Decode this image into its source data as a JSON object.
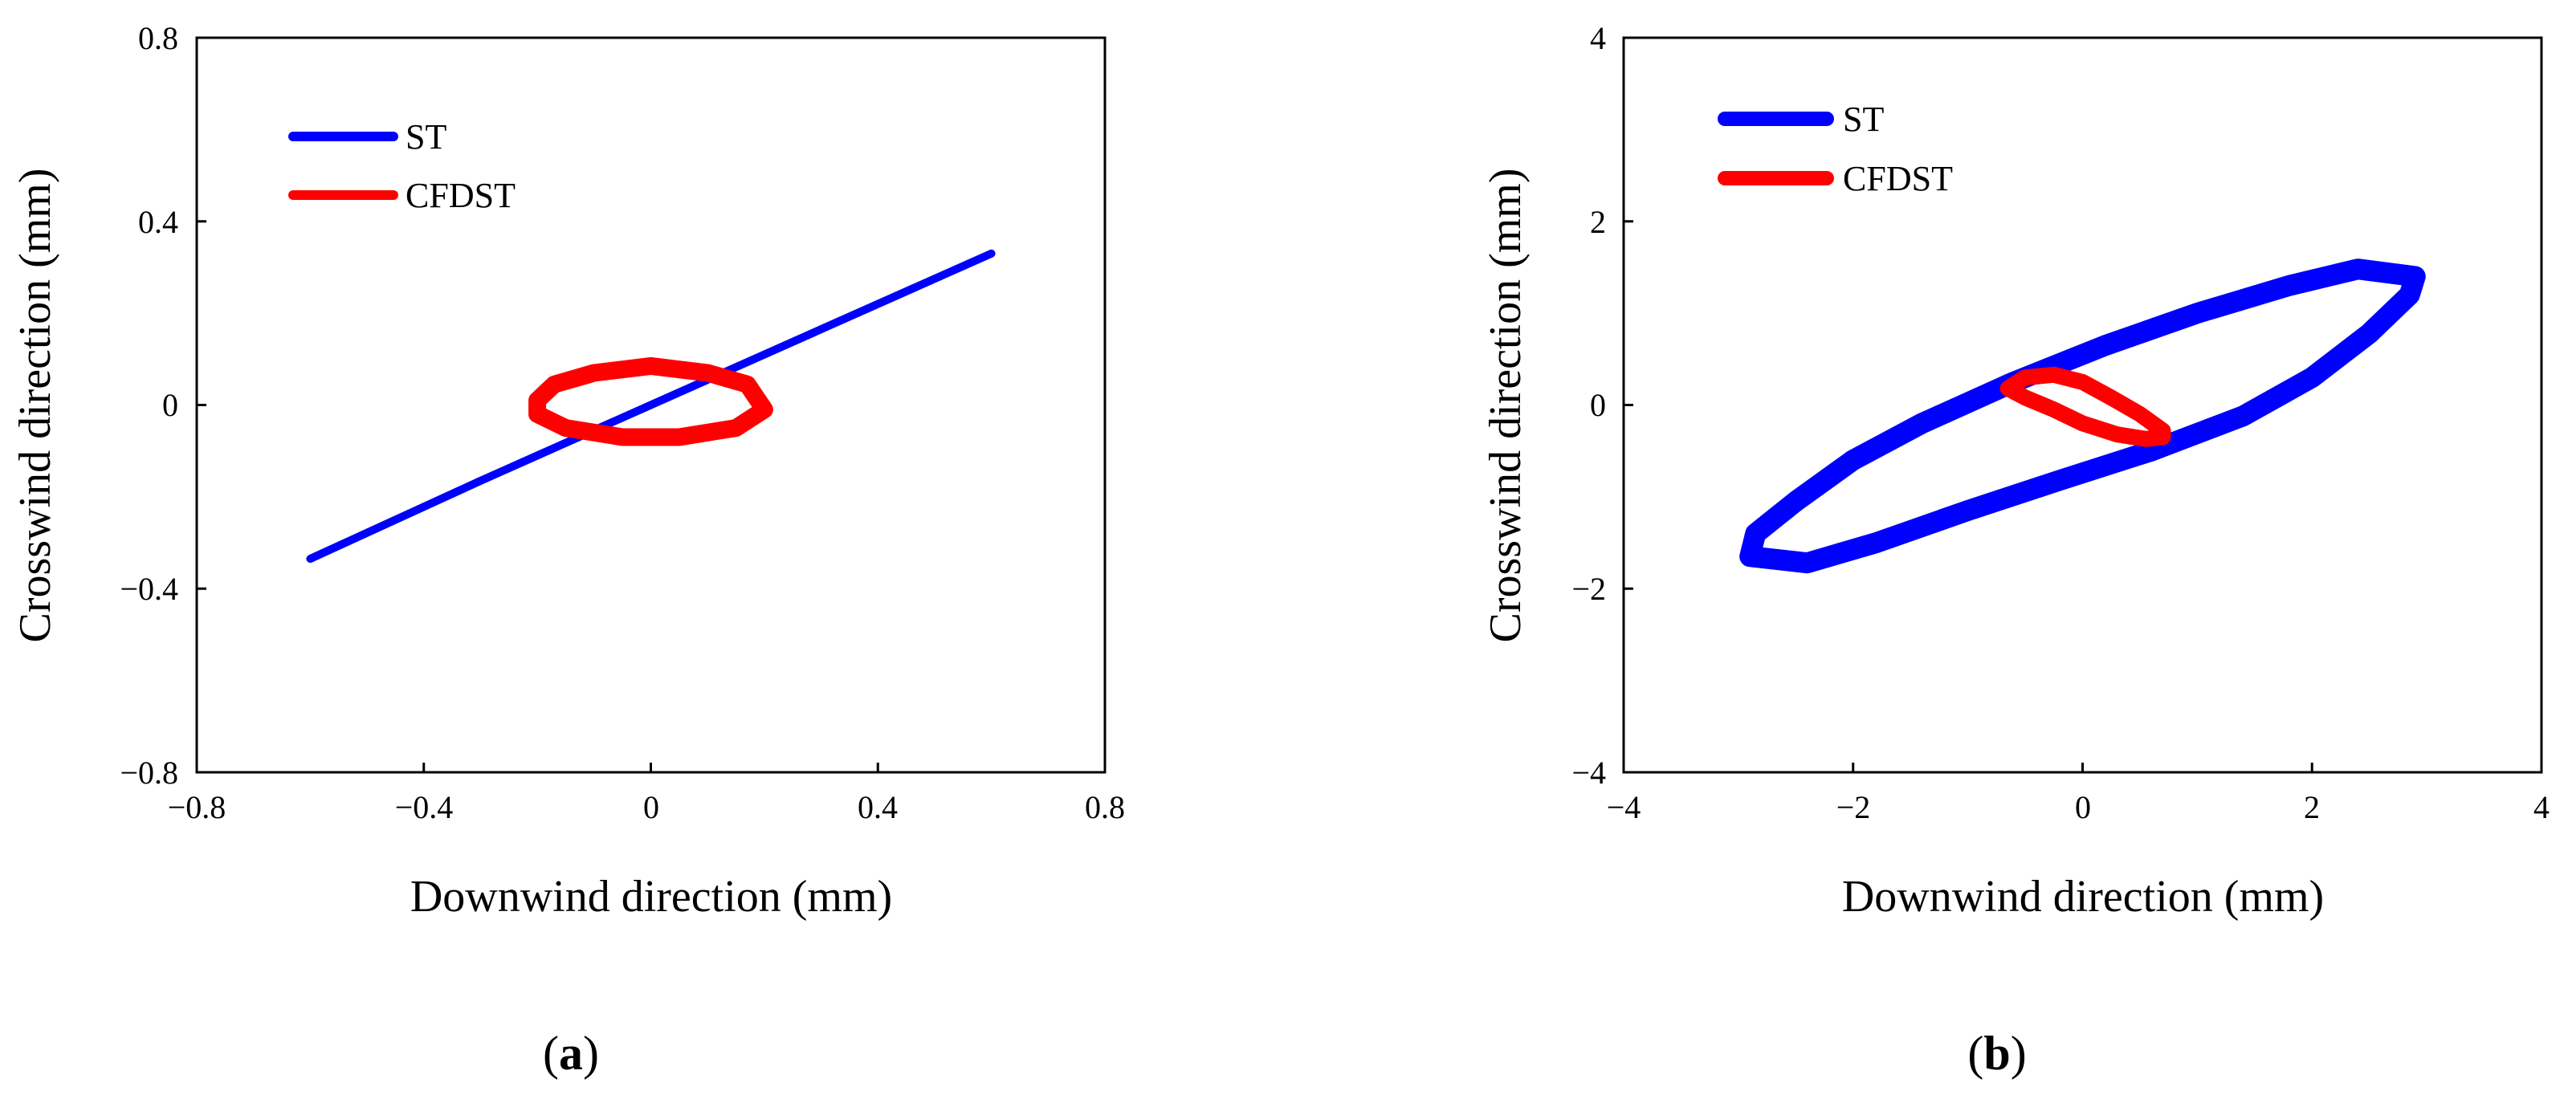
{
  "chart_data": [
    {
      "type": "line",
      "panel_label": {
        "open": "(",
        "letter": "a",
        "close": ")"
      },
      "xlabel": "Downwind direction (mm)",
      "ylabel": "Crosswind direction (mm)",
      "xlim": [
        -0.8,
        0.8
      ],
      "ylim": [
        -0.8,
        0.8
      ],
      "xticks": [
        -0.8,
        -0.4,
        0,
        0.4,
        0.8
      ],
      "yticks": [
        -0.8,
        -0.4,
        0,
        0.4,
        0.8
      ],
      "xtick_labels": [
        "−0.8",
        "−0.4",
        "0",
        "0.4",
        "0.8"
      ],
      "ytick_labels": [
        "−0.8",
        "−0.4",
        "0",
        "0.4",
        "0.8"
      ],
      "legend_position": "top-left",
      "series": [
        {
          "name": "ST",
          "color": "#0000ff",
          "x": [
            -0.6,
            -0.3,
            0,
            0.3,
            0.6
          ],
          "y": [
            -0.335,
            -0.165,
            0,
            0.165,
            0.33
          ]
        },
        {
          "name": "CFDST",
          "color": "#ff0000",
          "x": [
            0.2,
            0.17,
            0.1,
            0,
            -0.1,
            -0.17,
            -0.2,
            -0.2,
            -0.15,
            -0.05,
            0.05,
            0.15,
            0.2
          ],
          "y": [
            -0.01,
            0.045,
            0.07,
            0.085,
            0.07,
            0.045,
            0.01,
            -0.02,
            -0.05,
            -0.07,
            -0.07,
            -0.05,
            -0.01
          ]
        }
      ]
    },
    {
      "type": "line",
      "panel_label": {
        "open": "(",
        "letter": "b",
        "close": ")"
      },
      "xlabel": "Downwind direction (mm)",
      "ylabel": "Crosswind direction (mm)",
      "xlim": [
        -4,
        4
      ],
      "ylim": [
        -4,
        4
      ],
      "xticks": [
        -4,
        -2,
        0,
        2,
        4
      ],
      "yticks": [
        -4,
        -2,
        0,
        2,
        4
      ],
      "xtick_labels": [
        "−4",
        "−2",
        "0",
        "2",
        "4"
      ],
      "ytick_labels": [
        "−4",
        "−2",
        "0",
        "2",
        "4"
      ],
      "legend_position": "top-left",
      "series": [
        {
          "name": "ST",
          "color": "#0000ff",
          "x": [
            -2.9,
            -2.4,
            -1.8,
            -1.0,
            -0.2,
            0.6,
            1.4,
            2.0,
            2.5,
            2.85,
            2.9,
            2.4,
            1.8,
            1.0,
            0.2,
            -0.6,
            -1.4,
            -2.0,
            -2.5,
            -2.85,
            -2.9
          ],
          "y": [
            -1.65,
            -1.72,
            -1.5,
            -1.15,
            -0.82,
            -0.5,
            -0.12,
            0.3,
            0.78,
            1.2,
            1.4,
            1.48,
            1.3,
            1.0,
            0.65,
            0.25,
            -0.2,
            -0.6,
            -1.05,
            -1.4,
            -1.65
          ]
        },
        {
          "name": "CFDST",
          "color": "#ff0000",
          "x": [
            -0.65,
            -0.5,
            -0.25,
            0.0,
            0.25,
            0.5,
            0.7,
            0.7,
            0.55,
            0.3,
            0.0,
            -0.25,
            -0.5,
            -0.65
          ],
          "y": [
            0.18,
            0.3,
            0.33,
            0.25,
            0.08,
            -0.1,
            -0.28,
            -0.35,
            -0.37,
            -0.32,
            -0.2,
            -0.05,
            0.08,
            0.18
          ]
        }
      ]
    }
  ]
}
